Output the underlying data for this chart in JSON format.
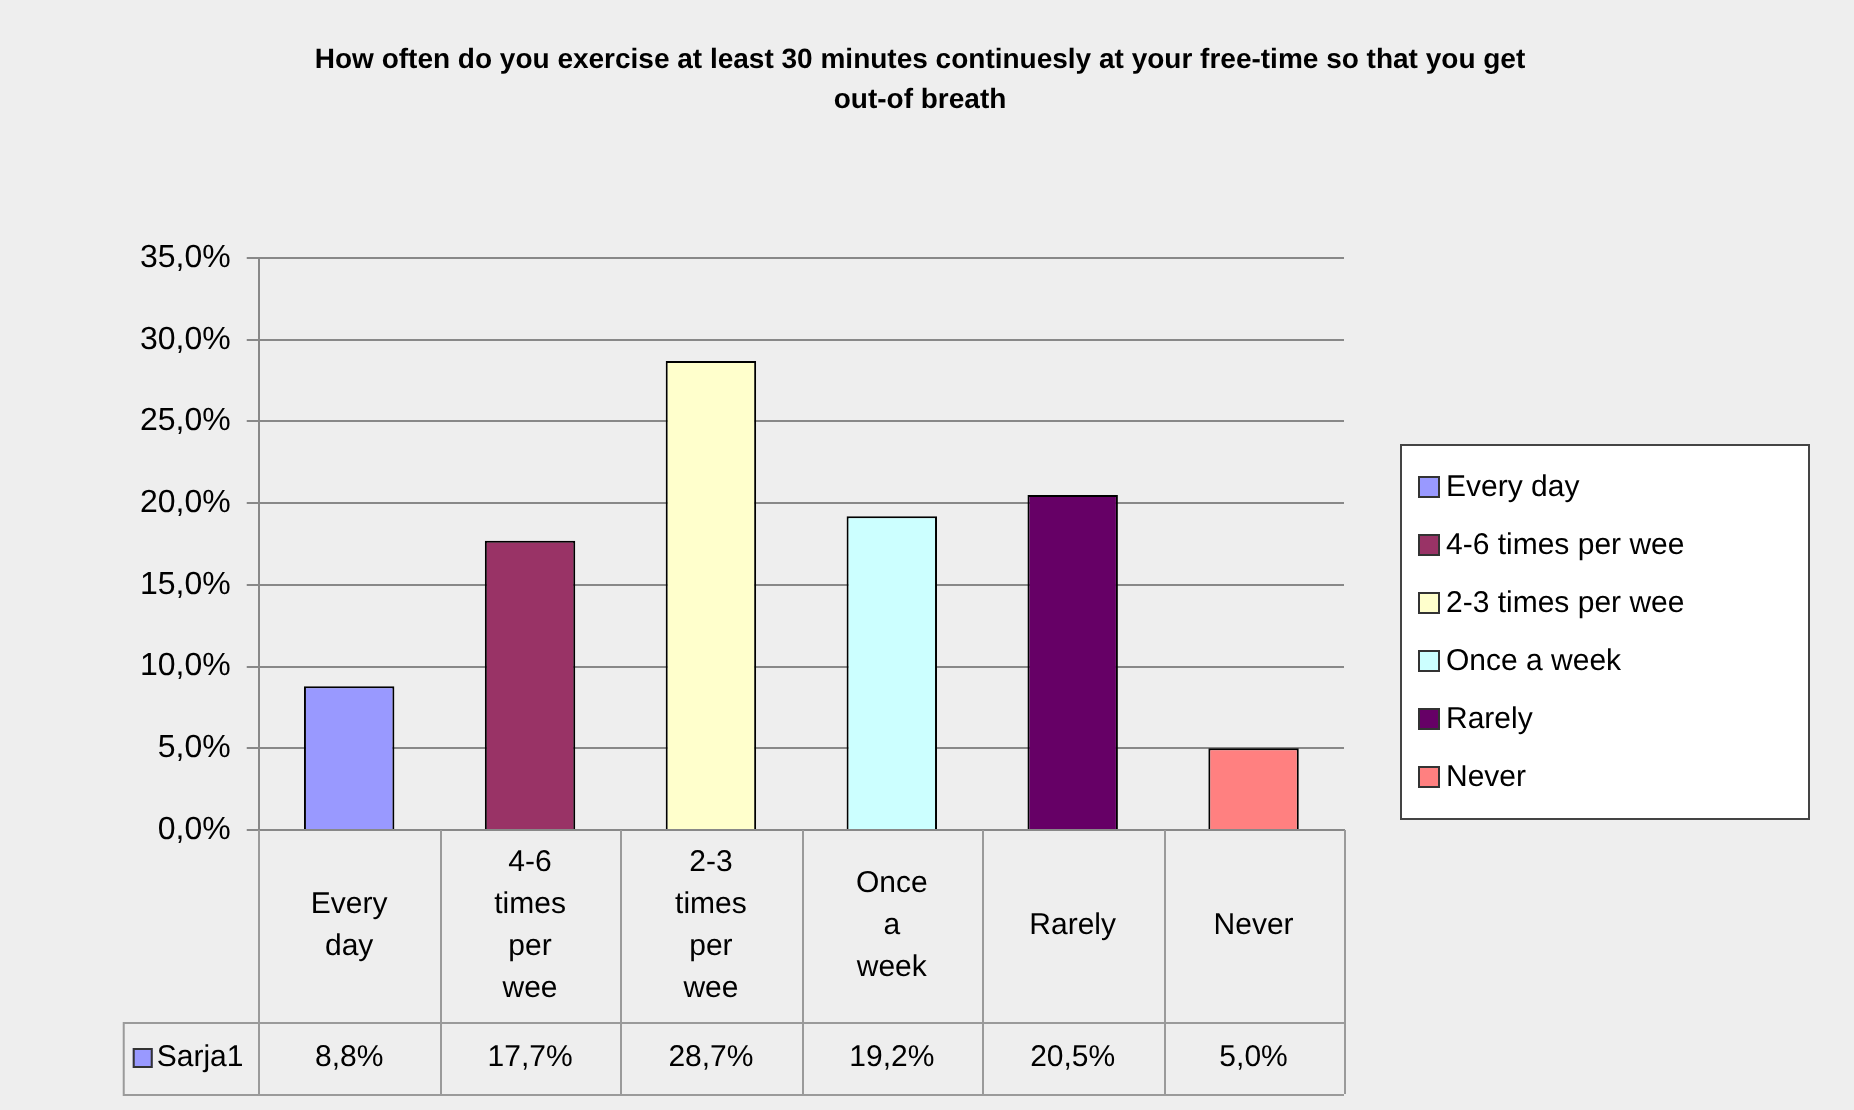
{
  "chart_data": {
    "type": "bar",
    "title": "How often do you exercise at least 30 minutes continuesly at your free-time so that you get out-of breath",
    "categories": [
      "Every day",
      "4-6 times per wee",
      "2-3 times per wee",
      "Once a week",
      "Rarely",
      "Never"
    ],
    "series": [
      {
        "name": "Sarja1",
        "colors": [
          "#9999ff",
          "#993366",
          "#ffffcc",
          "#ccffff",
          "#660066",
          "#ff8080"
        ],
        "values": [
          8.8,
          17.7,
          28.7,
          19.2,
          20.5,
          5.0
        ],
        "value_labels": [
          "8,8%",
          "17,7%",
          "28,7%",
          "19,2%",
          "20,5%",
          "5,0%"
        ]
      }
    ],
    "ylim": [
      0,
      35
    ],
    "yticks": [
      {
        "value": 0,
        "label": "0,0%"
      },
      {
        "value": 5,
        "label": "5,0%"
      },
      {
        "value": 10,
        "label": "10,0%"
      },
      {
        "value": 15,
        "label": "15,0%"
      },
      {
        "value": 20,
        "label": "20,0%"
      },
      {
        "value": 25,
        "label": "25,0%"
      },
      {
        "value": 30,
        "label": "30,0%"
      },
      {
        "value": 35,
        "label": "35,0%"
      }
    ],
    "grid": "y",
    "legend": "bottom left"
  }
}
